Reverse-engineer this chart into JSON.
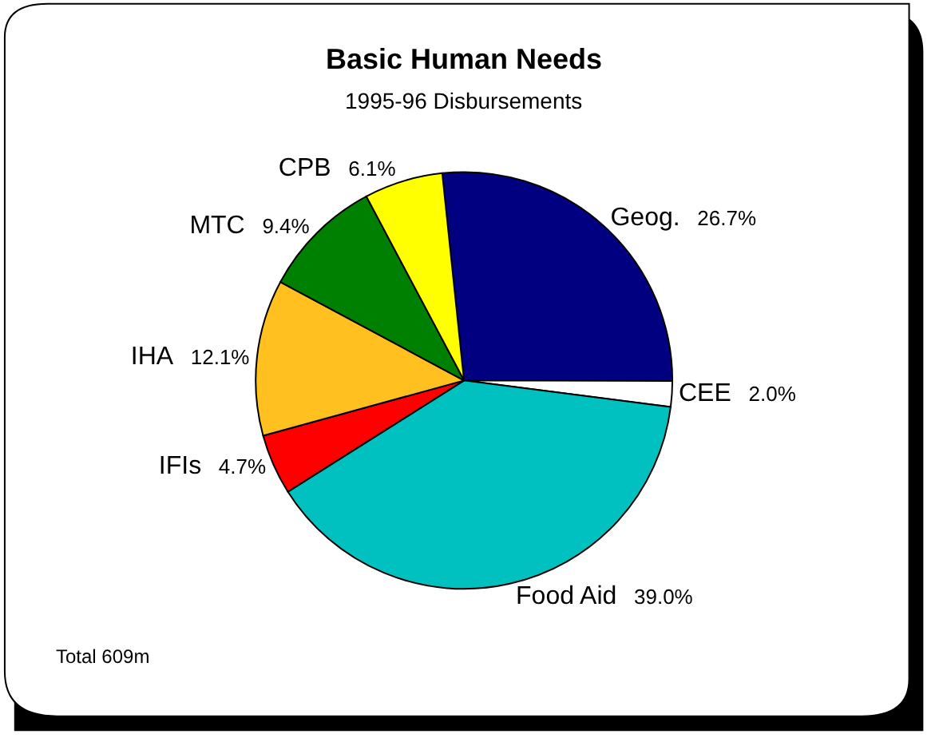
{
  "chart_data": {
    "type": "pie",
    "title": "Basic Human Needs",
    "subtitle": "1995-96 Disbursements",
    "categories": [
      "Geog.",
      "CEE",
      "Food Aid",
      "IFIs",
      "IHA",
      "MTC",
      "CPB"
    ],
    "values": [
      26.7,
      2.0,
      39.0,
      4.7,
      12.1,
      9.4,
      6.1
    ],
    "colors": [
      "#000080",
      "#ffffff",
      "#00c0c0",
      "#ff0000",
      "#ffc020",
      "#008000",
      "#ffff00"
    ],
    "value_labels": [
      "26.7%",
      "2.0%",
      "39.0%",
      "4.7%",
      "12.1%",
      "9.4%",
      "6.1%"
    ],
    "annotations": [
      "Total 609m"
    ],
    "legend": false
  }
}
